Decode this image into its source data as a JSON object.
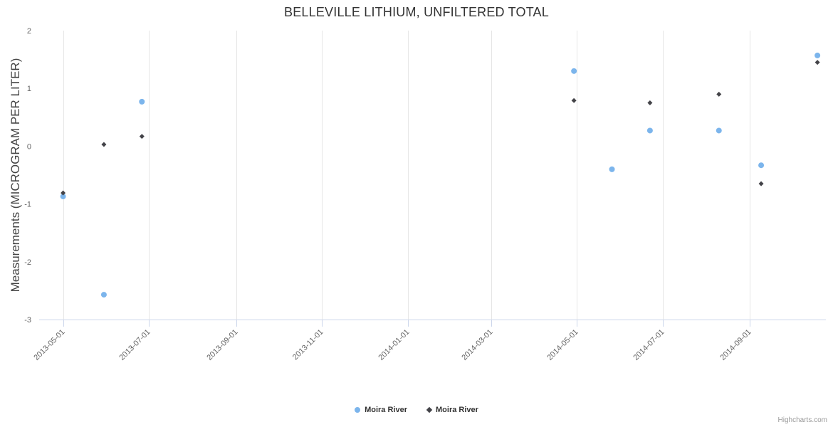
{
  "credits": "Highcharts.com",
  "chart_data": {
    "type": "scatter",
    "title": "BELLEVILLE LITHIUM, UNFILTERED TOTAL",
    "xlabel": "",
    "ylabel": "Measurements (MICROGRAM PER LITER)",
    "ylim": [
      -3,
      2
    ],
    "yticks": [
      -3,
      -2,
      -1,
      0,
      1,
      2
    ],
    "x_range": [
      "2013-04-14",
      "2014-10-25"
    ],
    "xticks": [
      "2013-05-01",
      "2013-07-01",
      "2013-09-01",
      "2013-11-01",
      "2014-01-01",
      "2014-03-01",
      "2014-05-01",
      "2014-07-01",
      "2014-09-01"
    ],
    "grid": "vertical",
    "legend_position": "bottom",
    "series": [
      {
        "name": "Moira River",
        "marker": "circle",
        "color": "#7cb5ec",
        "points": [
          {
            "x": "2013-05-01",
            "y": -0.87
          },
          {
            "x": "2013-05-30",
            "y": -2.57
          },
          {
            "x": "2013-06-26",
            "y": 0.77
          },
          {
            "x": "2014-04-29",
            "y": 1.3
          },
          {
            "x": "2014-05-26",
            "y": -0.4
          },
          {
            "x": "2014-06-22",
            "y": 0.27
          },
          {
            "x": "2014-08-10",
            "y": 0.27
          },
          {
            "x": "2014-09-09",
            "y": -0.33
          },
          {
            "x": "2014-10-19",
            "y": 1.57
          }
        ]
      },
      {
        "name": "Moira River",
        "marker": "diamond",
        "color": "#434348",
        "points": [
          {
            "x": "2013-05-01",
            "y": -0.81
          },
          {
            "x": "2013-05-30",
            "y": 0.03
          },
          {
            "x": "2013-06-26",
            "y": 0.17
          },
          {
            "x": "2014-04-29",
            "y": 0.79
          },
          {
            "x": "2014-06-22",
            "y": 0.75
          },
          {
            "x": "2014-08-10",
            "y": 0.9
          },
          {
            "x": "2014-09-09",
            "y": -0.65
          },
          {
            "x": "2014-10-19",
            "y": 1.45
          }
        ]
      }
    ]
  }
}
